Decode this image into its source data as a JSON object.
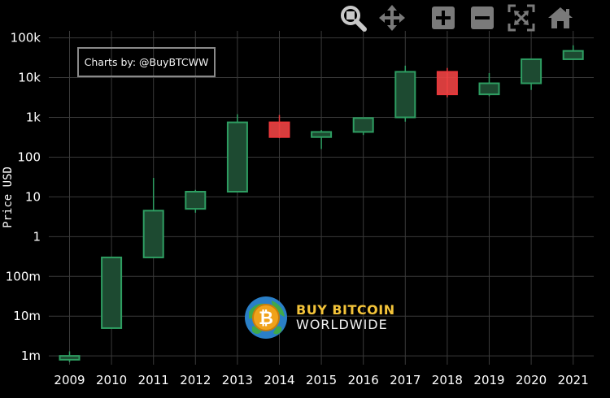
{
  "toolbar": {
    "icons": [
      "zoom-icon",
      "pan-icon",
      "zoom-in-icon",
      "zoom-out-icon",
      "autoscale-icon",
      "reset-axes-icon"
    ]
  },
  "credit": "Charts by: @BuyBTCWW",
  "logo": {
    "line1": "BUY BITCOIN",
    "line2": "WORLDWIDE",
    "symbol": "₿"
  },
  "colors": {
    "increasing": "#2e9e62",
    "increasing_fill": "#1d4a31",
    "decreasing": "#e8383b",
    "decreasing_fill": "#ee4444",
    "grid": "#3a3a3a",
    "background": "#000000",
    "logo_gold": "#f4c43a"
  },
  "chart_data": {
    "type": "candlestick",
    "ylabel": "Price USD",
    "yscale": "log",
    "ylim": [
      0.0006,
      150000
    ],
    "ytick_values": [
      0.001,
      0.01,
      0.1,
      1,
      10,
      100,
      1000,
      10000,
      100000
    ],
    "ytick_labels": [
      "1m",
      "10m",
      "100m",
      "1",
      "10",
      "100",
      "1k",
      "10k",
      "100k"
    ],
    "categories": [
      "2009",
      "2010",
      "2011",
      "2012",
      "2013",
      "2014",
      "2015",
      "2016",
      "2017",
      "2018",
      "2019",
      "2020",
      "2021"
    ],
    "ohlc": [
      {
        "year": "2009",
        "open": 0.0008,
        "high": 0.0013,
        "low": 0.0007,
        "close": 0.001
      },
      {
        "year": "2010",
        "open": 0.005,
        "high": 0.3,
        "low": 0.005,
        "close": 0.3
      },
      {
        "year": "2011",
        "open": 0.3,
        "high": 30,
        "low": 0.3,
        "close": 4.5
      },
      {
        "year": "2012",
        "open": 5,
        "high": 15,
        "low": 4,
        "close": 13.5
      },
      {
        "year": "2013",
        "open": 13.5,
        "high": 1200,
        "low": 13,
        "close": 750
      },
      {
        "year": "2014",
        "open": 750,
        "high": 1150,
        "low": 300,
        "close": 320
      },
      {
        "year": "2015",
        "open": 320,
        "high": 480,
        "low": 160,
        "close": 430
      },
      {
        "year": "2016",
        "open": 430,
        "high": 1000,
        "low": 360,
        "close": 960
      },
      {
        "year": "2017",
        "open": 1000,
        "high": 20000,
        "low": 780,
        "close": 14000
      },
      {
        "year": "2018",
        "open": 14000,
        "high": 17500,
        "low": 3200,
        "close": 3800
      },
      {
        "year": "2019",
        "open": 3800,
        "high": 13000,
        "low": 3400,
        "close": 7200
      },
      {
        "year": "2020",
        "open": 7200,
        "high": 29000,
        "low": 4900,
        "close": 29000
      },
      {
        "year": "2021",
        "open": 29000,
        "high": 65000,
        "low": 28000,
        "close": 47000
      }
    ],
    "grid": true
  }
}
